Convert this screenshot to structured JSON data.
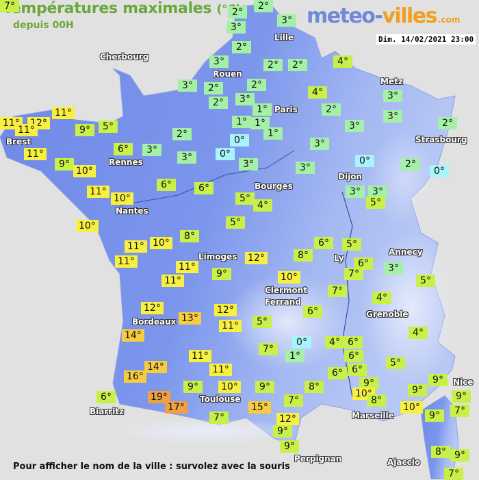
{
  "header": {
    "title": "Températures maximales",
    "unit": "(°C)",
    "subtitle": "depuis 00H",
    "logo": "meteo-villes.com",
    "logo_part1": "meteo-",
    "logo_part2": "villes",
    "logo_part3": ".com",
    "datetime": "Dim. 14/02/2021 23:00"
  },
  "colors": {
    "background": "#e1e1e1",
    "land": "#7490ea",
    "cold_0": "#a8f4fa",
    "cool_1_3": "#a4f0a4",
    "mild_4_9": "#c8f048",
    "warm_10_12": "#f8f040",
    "warm_13_16": "#f8cc40",
    "hot_17_plus": "#f0a040"
  },
  "temperatures": [
    "2°",
    "2°",
    "3°",
    "3°",
    "2°",
    "3°",
    "2°",
    "2°",
    "4°",
    "3°",
    "2°",
    "2°",
    "4°",
    "2°",
    "3°",
    "1°",
    "2°",
    "3°",
    "1°",
    "1°",
    "1°",
    "3°",
    "3°",
    "2°",
    "2°",
    "0°",
    "0°",
    "3°",
    "6°",
    "3°",
    "3°",
    "3°",
    "3°",
    "0°",
    "2°",
    "0°",
    "6°",
    "6°",
    "3°",
    "3°",
    "5°",
    "5°",
    "4°",
    "5°",
    "11°",
    "12°",
    "11°",
    "11°",
    "9°",
    "5°",
    "11°",
    "9°",
    "10°",
    "11°",
    "10°",
    "10°",
    "11°",
    "11°",
    "10°",
    "8°",
    "6°",
    "5°",
    "6°",
    "12°",
    "8°",
    "3°",
    "11°",
    "9°",
    "11°",
    "10°",
    "7°",
    "7°",
    "5°",
    "4°",
    "12°",
    "12°",
    "13°",
    "11°",
    "5°",
    "14°",
    "6°",
    "4°",
    "7°",
    "0°",
    "1°",
    "4°",
    "6°",
    "6°",
    "5°",
    "11°",
    "11°",
    "14°",
    "16°",
    "6°",
    "6°",
    "9°",
    "9°",
    "10°",
    "9°",
    "10°",
    "9°",
    "8°",
    "9°",
    "9°",
    "6°",
    "19°",
    "17°",
    "15°",
    "7°",
    "8°",
    "10°",
    "9°",
    "7°",
    "7°",
    "12°",
    "9°",
    "9°",
    "8°",
    "9°",
    "7°",
    "7°",
    "7°"
  ],
  "cities": [
    "Cherbourg",
    "Lille",
    "Rouen",
    "Paris",
    "Metz",
    "Strasbourg",
    "Brest",
    "Rennes",
    "Dijon",
    "Bourges",
    "Nantes",
    "Limoges",
    "Annecy",
    "Ly",
    "Clermont",
    "Ferrand",
    "Grenoble",
    "Bordeaux",
    "Nice",
    "Toulouse",
    "Marseille",
    "Biarritz",
    "Perpignan",
    "Ajaccio"
  ],
  "footer": "Pour afficher le nom de la ville : survolez avec la souris"
}
